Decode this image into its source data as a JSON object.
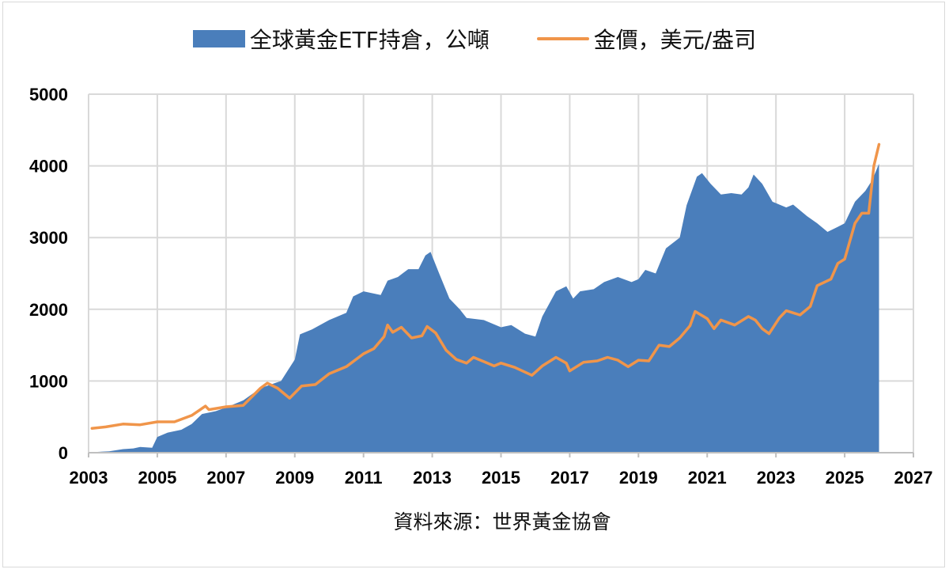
{
  "legend": {
    "series_etf": "全球黃金ETF持倉，公噸",
    "series_gold": "金價，美元/盎司"
  },
  "source": "資料來源：世界黃金協會",
  "colors": {
    "etf_fill": "#4a7ebb",
    "gold_line": "#f0954a",
    "grid": "#d9d9d9"
  },
  "chart_data": {
    "type": "area",
    "title": "",
    "xlabel": "",
    "ylabel": "",
    "xlim": [
      2003,
      2027
    ],
    "ylim": [
      0,
      5000
    ],
    "xticks": [
      "2003",
      "2005",
      "2007",
      "2009",
      "2011",
      "2013",
      "2015",
      "2017",
      "2019",
      "2021",
      "2023",
      "2025",
      "2027"
    ],
    "yticks": [
      "0",
      "1000",
      "2000",
      "3000",
      "4000",
      "5000"
    ],
    "grid": true,
    "legend_position": "top",
    "series": [
      {
        "name": "全球黃金ETF持倉，公噸",
        "type": "area",
        "x": [
          2003.2,
          2003.6,
          2004.0,
          2004.3,
          2004.5,
          2004.85,
          2005.0,
          2005.3,
          2005.7,
          2006.0,
          2006.3,
          2006.7,
          2007.0,
          2007.5,
          2008.0,
          2008.3,
          2008.6,
          2008.8,
          2009.0,
          2009.15,
          2009.5,
          2010.0,
          2010.5,
          2010.7,
          2011.0,
          2011.5,
          2011.7,
          2012.0,
          2012.3,
          2012.6,
          2012.8,
          2012.95,
          2013.2,
          2013.5,
          2013.8,
          2014.0,
          2014.5,
          2015.0,
          2015.3,
          2015.7,
          2016.0,
          2016.2,
          2016.6,
          2016.9,
          2017.1,
          2017.3,
          2017.7,
          2018.0,
          2018.4,
          2018.8,
          2019.0,
          2019.2,
          2019.5,
          2019.8,
          2020.2,
          2020.4,
          2020.7,
          2020.85,
          2021.1,
          2021.4,
          2021.7,
          2022.0,
          2022.2,
          2022.35,
          2022.6,
          2022.9,
          2023.3,
          2023.5,
          2023.9,
          2024.2,
          2024.5,
          2024.8,
          2025.0,
          2025.3,
          2025.6,
          2025.8,
          2026.0
        ],
        "values": [
          10,
          20,
          50,
          60,
          80,
          70,
          220,
          280,
          320,
          400,
          540,
          580,
          630,
          730,
          900,
          950,
          1000,
          1150,
          1300,
          1650,
          1720,
          1850,
          1950,
          2180,
          2250,
          2200,
          2400,
          2450,
          2560,
          2560,
          2750,
          2800,
          2500,
          2150,
          2000,
          1880,
          1850,
          1750,
          1780,
          1660,
          1620,
          1900,
          2250,
          2320,
          2150,
          2250,
          2280,
          2380,
          2450,
          2380,
          2420,
          2550,
          2500,
          2850,
          3000,
          3450,
          3850,
          3900,
          3750,
          3600,
          3620,
          3600,
          3700,
          3880,
          3750,
          3500,
          3420,
          3460,
          3300,
          3200,
          3080,
          3150,
          3200,
          3500,
          3650,
          3800,
          4030
        ]
      },
      {
        "name": "金價，美元/盎司",
        "type": "line",
        "x": [
          2003.1,
          2003.5,
          2004.0,
          2004.5,
          2005.0,
          2005.5,
          2006.0,
          2006.4,
          2006.5,
          2007.0,
          2007.5,
          2008.0,
          2008.2,
          2008.5,
          2008.85,
          2009.2,
          2009.6,
          2010.0,
          2010.5,
          2011.0,
          2011.3,
          2011.6,
          2011.7,
          2011.85,
          2012.1,
          2012.4,
          2012.7,
          2012.85,
          2013.1,
          2013.4,
          2013.7,
          2014.0,
          2014.2,
          2014.5,
          2014.8,
          2015.0,
          2015.4,
          2015.9,
          2016.2,
          2016.6,
          2016.9,
          2017.0,
          2017.4,
          2017.8,
          2018.1,
          2018.4,
          2018.7,
          2019.0,
          2019.3,
          2019.6,
          2019.9,
          2020.2,
          2020.5,
          2020.65,
          2021.0,
          2021.2,
          2021.4,
          2021.8,
          2022.2,
          2022.4,
          2022.6,
          2022.8,
          2023.1,
          2023.3,
          2023.7,
          2024.0,
          2024.2,
          2024.6,
          2024.8,
          2025.0,
          2025.3,
          2025.5,
          2025.7,
          2025.85,
          2026.0
        ],
        "values": [
          340,
          360,
          400,
          390,
          430,
          430,
          520,
          650,
          600,
          640,
          660,
          900,
          970,
          900,
          760,
          930,
          950,
          1100,
          1200,
          1380,
          1450,
          1620,
          1780,
          1680,
          1750,
          1600,
          1630,
          1760,
          1670,
          1430,
          1300,
          1250,
          1330,
          1270,
          1210,
          1250,
          1190,
          1080,
          1210,
          1330,
          1250,
          1140,
          1260,
          1280,
          1330,
          1290,
          1200,
          1290,
          1280,
          1500,
          1480,
          1600,
          1770,
          1970,
          1870,
          1730,
          1850,
          1780,
          1900,
          1850,
          1730,
          1660,
          1880,
          1980,
          1920,
          2040,
          2330,
          2420,
          2640,
          2700,
          3200,
          3340,
          3340,
          4000,
          4300
        ]
      }
    ]
  }
}
